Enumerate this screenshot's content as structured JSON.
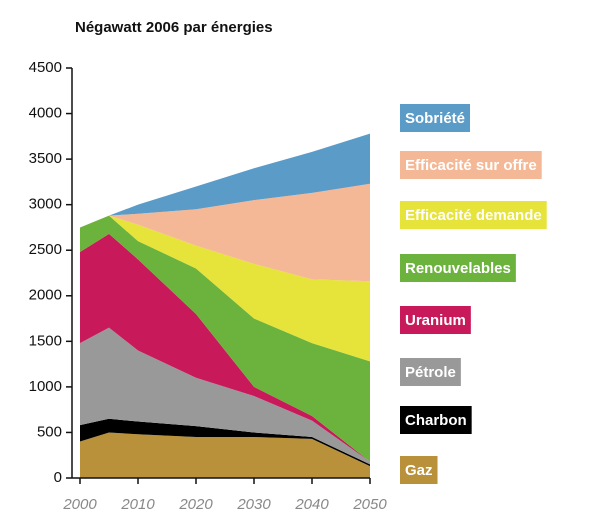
{
  "chart_data": {
    "type": "stacked_area",
    "title": "Négawatt 2006 par énergies",
    "x": [
      2000,
      2005,
      2010,
      2020,
      2030,
      2040,
      2050
    ],
    "xlim": [
      2000,
      2050
    ],
    "xticks": [
      2000,
      2010,
      2020,
      2030,
      2040,
      2050
    ],
    "ylim": [
      0,
      4500
    ],
    "yticks": [
      0,
      500,
      1000,
      1500,
      2000,
      2500,
      3000,
      3500,
      4000,
      4500
    ],
    "series": [
      {
        "name": "Gaz",
        "color": "#b8913a",
        "values": [
          400,
          500,
          480,
          450,
          450,
          430,
          130
        ]
      },
      {
        "name": "Charbon",
        "color": "#000000",
        "values": [
          180,
          150,
          140,
          120,
          50,
          20,
          20
        ]
      },
      {
        "name": "Pétrole",
        "color": "#999999",
        "values": [
          900,
          1000,
          780,
          530,
          400,
          180,
          30
        ]
      },
      {
        "name": "Uranium",
        "color": "#c8195a",
        "values": [
          1000,
          1030,
          1000,
          700,
          100,
          50,
          0
        ]
      },
      {
        "name": "Renouvelables",
        "color": "#6cb33e",
        "values": [
          270,
          200,
          200,
          500,
          750,
          800,
          1100
        ]
      },
      {
        "name": "Efficacité demande",
        "color": "#e6e33a",
        "values": [
          0,
          0,
          180,
          250,
          600,
          700,
          880
        ]
      },
      {
        "name": "Efficacité sur offre",
        "color": "#f5b896",
        "values": [
          0,
          0,
          120,
          400,
          700,
          950,
          1070
        ]
      },
      {
        "name": "Sobriété",
        "color": "#5b9bc8",
        "values": [
          0,
          0,
          100,
          250,
          350,
          450,
          550
        ]
      }
    ]
  }
}
